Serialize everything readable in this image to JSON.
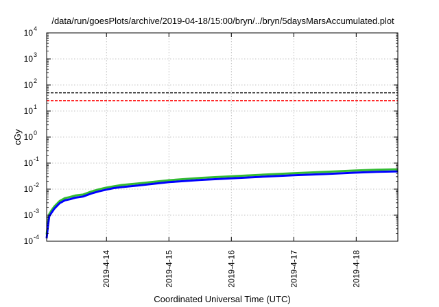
{
  "chart_data": {
    "type": "line",
    "title": "/data/run/goesPlots/archive/2019-04-18/15:00/bryn/../bryn/5daysMarsAccumulated.plot",
    "xlabel": "Coordinated Universal Time (UTC)",
    "ylabel": "cGy",
    "yscale": "log",
    "ylim": [
      0.0001,
      10000
    ],
    "xlim": [
      "2019-04-13 01:00",
      "2019-04-18 16:00"
    ],
    "grid": true,
    "legend": "none",
    "x_ticks": [
      "2019-4-14",
      "2019-4-15",
      "2019-4-16",
      "2019-4-17",
      "2019-4-18"
    ],
    "y_ticks": [
      {
        "base": "10",
        "exp": "-4",
        "value": 0.0001
      },
      {
        "base": "10",
        "exp": "-3",
        "value": 0.001
      },
      {
        "base": "10",
        "exp": "-2",
        "value": 0.01
      },
      {
        "base": "10",
        "exp": "-1",
        "value": 0.1
      },
      {
        "base": "10",
        "exp": "0",
        "value": 1
      },
      {
        "base": "10",
        "exp": "1",
        "value": 10
      },
      {
        "base": "10",
        "exp": "2",
        "value": 100
      },
      {
        "base": "10",
        "exp": "3",
        "value": 1000
      },
      {
        "base": "10",
        "exp": "4",
        "value": 10000
      }
    ],
    "reference_lines": [
      {
        "value": 50,
        "color": "#000000",
        "style": "dashed"
      },
      {
        "value": 25,
        "color": "#ff0000",
        "style": "dashed"
      }
    ],
    "series": [
      {
        "color": "#33bb33",
        "x": [
          "2019-04-13 01:00",
          "2019-04-13 01:30",
          "2019-04-13 02:00",
          "2019-04-13 03:00",
          "2019-04-13 04:00",
          "2019-04-13 06:00",
          "2019-04-13 08:00",
          "2019-04-13 10:00",
          "2019-04-13 12:00",
          "2019-04-13 15:00",
          "2019-04-13 18:00",
          "2019-04-13 21:00",
          "2019-04-14 00:00",
          "2019-04-14 03:00",
          "2019-04-14 06:00",
          "2019-04-14 12:00",
          "2019-04-14 18:00",
          "2019-04-15 00:00",
          "2019-04-15 12:00",
          "2019-04-16 00:00",
          "2019-04-16 12:00",
          "2019-04-17 00:00",
          "2019-04-17 12:00",
          "2019-04-18 00:00",
          "2019-04-18 08:00",
          "2019-04-18 16:00"
        ],
        "values": [
          0.00018,
          0.0005,
          0.0011,
          0.0016,
          0.0022,
          0.0035,
          0.0045,
          0.005,
          0.0057,
          0.0062,
          0.008,
          0.0098,
          0.0115,
          0.013,
          0.0145,
          0.0165,
          0.019,
          0.022,
          0.027,
          0.031,
          0.036,
          0.041,
          0.046,
          0.052,
          0.056,
          0.058
        ]
      },
      {
        "color": "#0000ff",
        "x": [
          "2019-04-13 01:00",
          "2019-04-13 01:30",
          "2019-04-13 02:00",
          "2019-04-13 03:00",
          "2019-04-13 04:00",
          "2019-04-13 06:00",
          "2019-04-13 08:00",
          "2019-04-13 10:00",
          "2019-04-13 12:00",
          "2019-04-13 15:00",
          "2019-04-13 18:00",
          "2019-04-13 21:00",
          "2019-04-14 00:00",
          "2019-04-14 03:00",
          "2019-04-14 06:00",
          "2019-04-14 12:00",
          "2019-04-14 18:00",
          "2019-04-15 00:00",
          "2019-04-15 12:00",
          "2019-04-16 00:00",
          "2019-04-16 12:00",
          "2019-04-17 00:00",
          "2019-04-17 12:00",
          "2019-04-18 00:00",
          "2019-04-18 08:00",
          "2019-04-18 16:00"
        ],
        "values": [
          0.00013,
          0.00038,
          0.0009,
          0.0013,
          0.0018,
          0.0029,
          0.0037,
          0.0041,
          0.0047,
          0.0052,
          0.0067,
          0.0082,
          0.0096,
          0.011,
          0.012,
          0.0138,
          0.016,
          0.0185,
          0.0225,
          0.026,
          0.03,
          0.034,
          0.038,
          0.043,
          0.046,
          0.048
        ]
      }
    ]
  }
}
